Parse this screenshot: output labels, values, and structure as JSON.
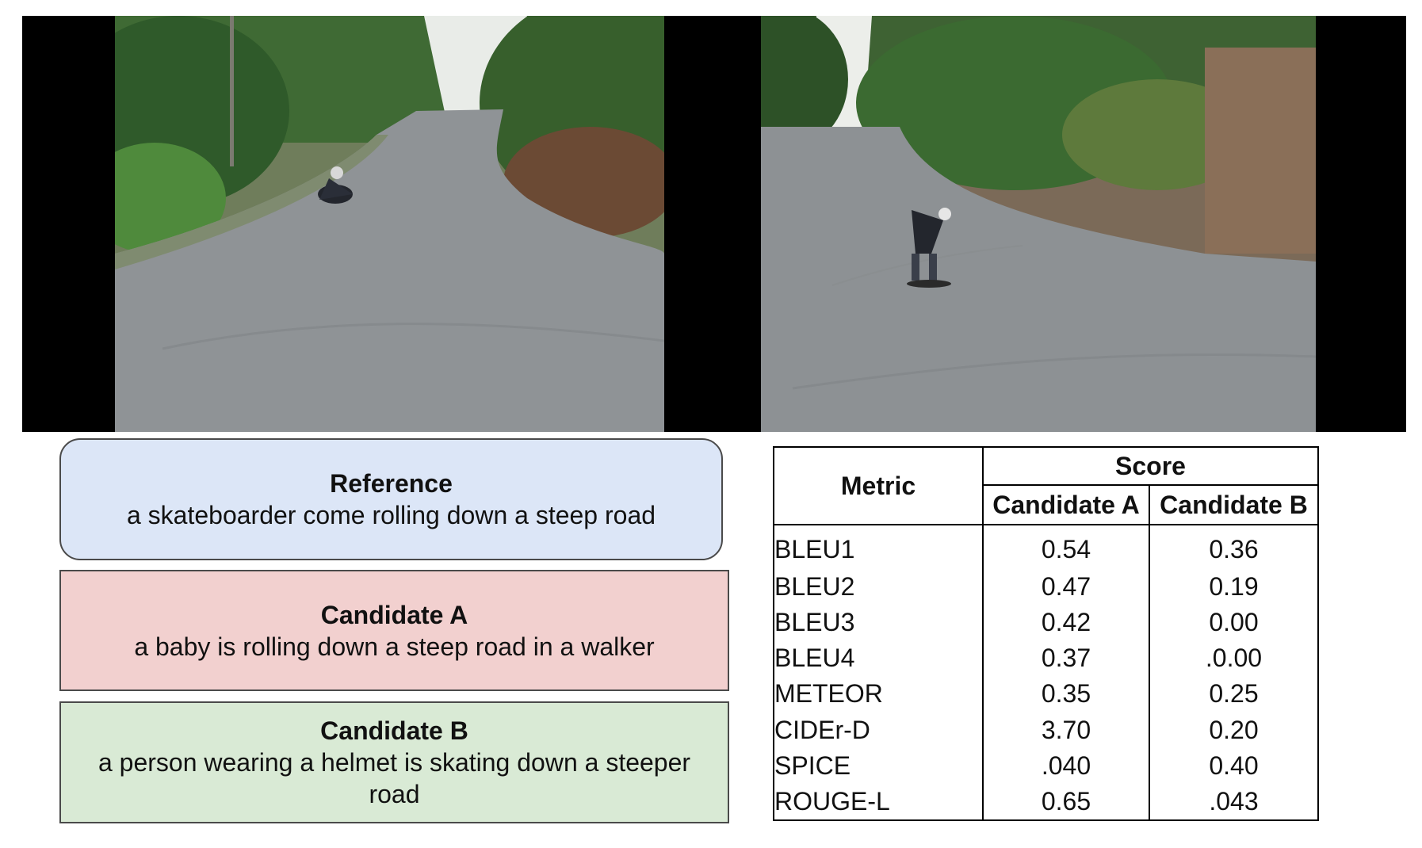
{
  "reference": {
    "title": "Reference",
    "text": "a skateboarder come rolling down a steep road"
  },
  "candidate_a": {
    "title": "Candidate A",
    "text": "a baby is rolling down a steep road in a walker"
  },
  "candidate_b": {
    "title": "Candidate B",
    "text": "a person wearing a helmet is skating down a steeper road"
  },
  "colors": {
    "reference_bg": "#dce6f7",
    "candidate_a_bg": "#f2d0cf",
    "candidate_b_bg": "#d9ead5",
    "letterbox": "#000000"
  },
  "table": {
    "metric_header": "Metric",
    "score_header": "Score",
    "candidate_a_header": "Candidate A",
    "candidate_b_header": "Candidate B",
    "rows": [
      {
        "metric": "BLEU1",
        "a": "0.54",
        "b": "0.36"
      },
      {
        "metric": "BLEU2",
        "a": "0.47",
        "b": "0.19"
      },
      {
        "metric": "BLEU3",
        "a": "0.42",
        "b": "0.00"
      },
      {
        "metric": "BLEU4",
        "a": "0.37",
        "b": ".0.00"
      },
      {
        "metric": "METEOR",
        "a": "0.35",
        "b": "0.25"
      },
      {
        "metric": "CIDEr-D",
        "a": "3.70",
        "b": "0.20"
      },
      {
        "metric": "SPICE",
        "a": ".040",
        "b": "0.40"
      },
      {
        "metric": "ROUGE-L",
        "a": "0.65",
        "b": ".043"
      }
    ]
  }
}
